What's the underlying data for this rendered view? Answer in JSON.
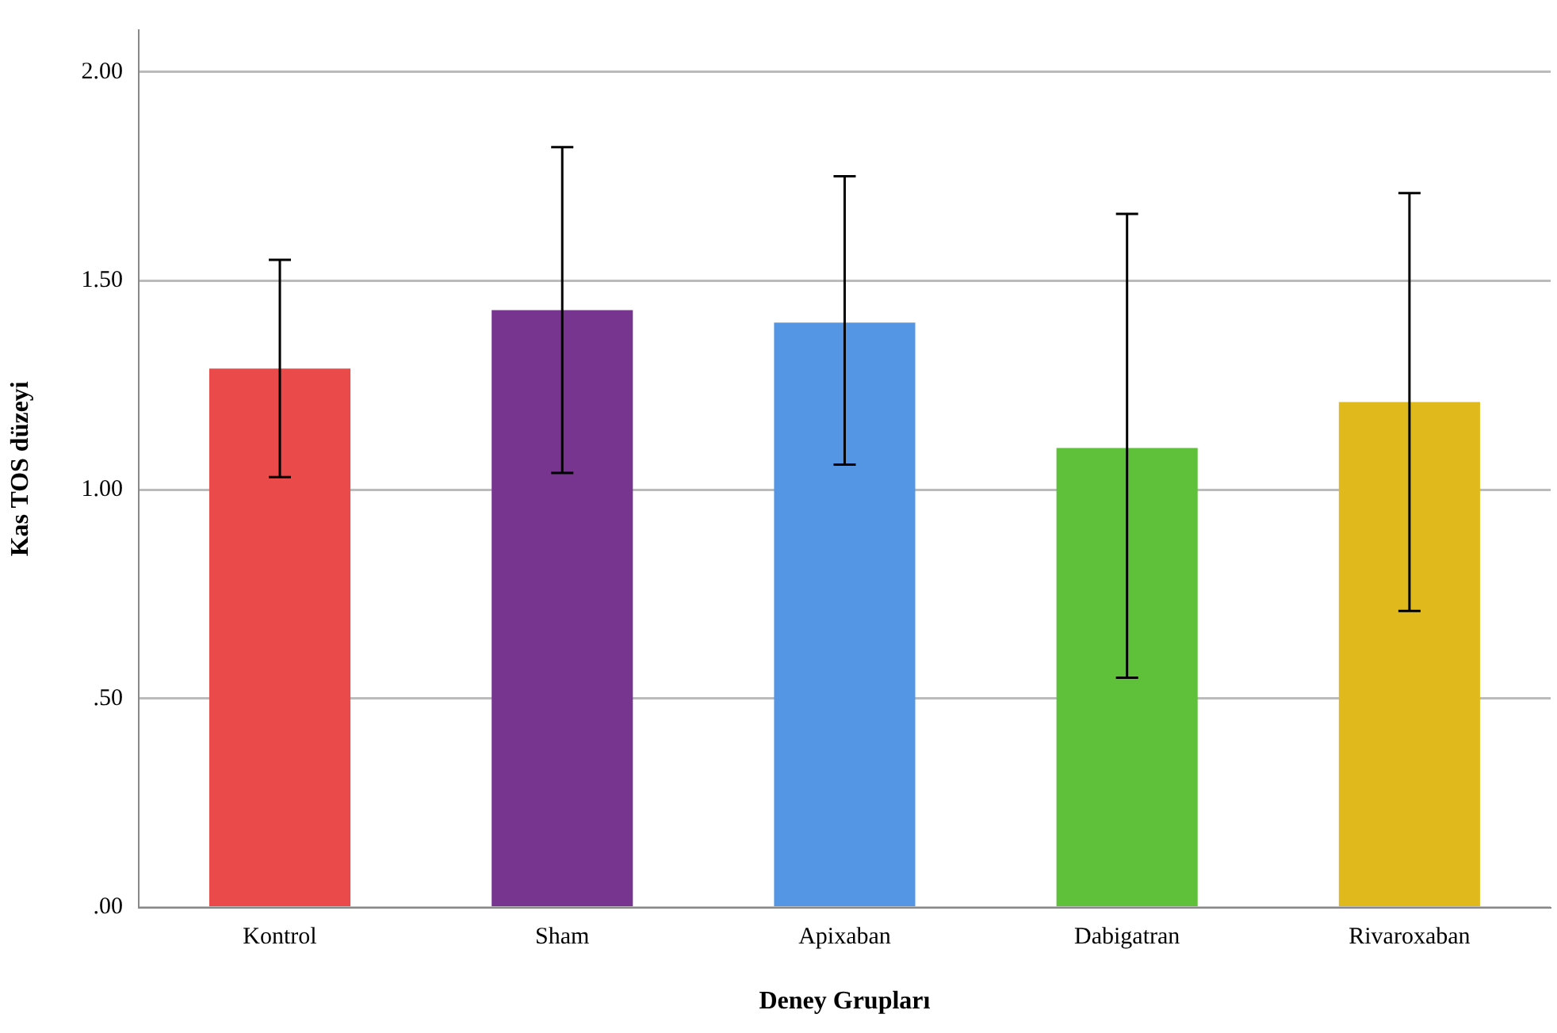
{
  "chart_data": {
    "type": "bar",
    "xlabel": "Deney Grupları",
    "ylabel": "Kas TOS düzeyi",
    "categories": [
      "Kontrol",
      "Sham",
      "Apixaban",
      "Dabigatran",
      "Rivaroxaban"
    ],
    "values": [
      1.29,
      1.43,
      1.4,
      1.1,
      1.21
    ],
    "colors": [
      "#ea4a4a",
      "#773590",
      "#5495e4",
      "#5ec139",
      "#e0ba1d"
    ],
    "errors": [
      [
        1.03,
        1.55
      ],
      [
        1.04,
        1.82
      ],
      [
        1.06,
        1.75
      ],
      [
        0.55,
        1.66
      ],
      [
        0.71,
        1.71
      ]
    ],
    "ylim": [
      0,
      2.1
    ],
    "yticks": [
      {
        "value": 0,
        "label": ".00"
      },
      {
        "value": 0.5,
        "label": ".50"
      },
      {
        "value": 1,
        "label": "1.00"
      },
      {
        "value": 1.5,
        "label": "1.50"
      },
      {
        "value": 2,
        "label": "2.00"
      }
    ],
    "grid": "y",
    "legend": false
  }
}
